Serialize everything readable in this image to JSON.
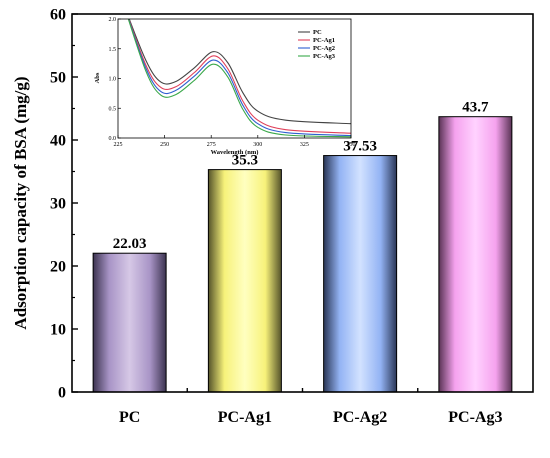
{
  "chart_data": [
    {
      "type": "bar",
      "categories": [
        "PC",
        "PC-Ag1",
        "PC-Ag2",
        "PC-Ag3"
      ],
      "values": [
        22.03,
        35.3,
        37.53,
        43.7
      ],
      "value_labels": [
        "22.03",
        "35.3",
        "37.53",
        "43.7"
      ],
      "ylabel": "Adsorption capacity of BSA (mg/g)",
      "xlabel": "",
      "ylim": [
        0,
        60
      ],
      "yticks": [
        0,
        10,
        20,
        30,
        40,
        50,
        60
      ],
      "bar_colors": [
        {
          "light": "#d6c8e6",
          "mid": "#a894c6",
          "dark": "#3c3350"
        },
        {
          "light": "#ffffc0",
          "mid": "#f7f27a",
          "dark": "#55532a"
        },
        {
          "light": "#d2e2ff",
          "mid": "#93b3f4",
          "dark": "#2a3656"
        },
        {
          "light": "#ffd2ff",
          "mid": "#f5a2ee",
          "dark": "#5a3355"
        }
      ],
      "grid": false
    },
    {
      "type": "line",
      "xlabel": "Wavelength (nm)",
      "ylabel": "Abs",
      "xlim": [
        225,
        350
      ],
      "ylim": [
        0,
        2.0
      ],
      "xticks": [
        225,
        250,
        275,
        300,
        325,
        350
      ],
      "yticks": [
        0.0,
        0.5,
        1.0,
        1.5,
        2.0
      ],
      "ytick_labels": [
        "0.0",
        "0.5",
        "1.0",
        "1.5",
        "2.0"
      ],
      "legend_position": "top-right",
      "series": [
        {
          "name": "PC",
          "color": "#444444",
          "anchors": [
            [
              228,
              2.25
            ],
            [
              240,
              1.3
            ],
            [
              248,
              0.94
            ],
            [
              256,
              0.95
            ],
            [
              266,
              1.18
            ],
            [
              276,
              1.45
            ],
            [
              284,
              1.26
            ],
            [
              292,
              0.76
            ],
            [
              300,
              0.45
            ],
            [
              315,
              0.3
            ],
            [
              350,
              0.24
            ]
          ]
        },
        {
          "name": "PC-Ag1",
          "color": "#e0405a",
          "anchors": [
            [
              228,
              2.25
            ],
            [
              240,
              1.22
            ],
            [
              248,
              0.85
            ],
            [
              256,
              0.86
            ],
            [
              266,
              1.1
            ],
            [
              276,
              1.38
            ],
            [
              284,
              1.16
            ],
            [
              292,
              0.62
            ],
            [
              300,
              0.3
            ],
            [
              315,
              0.14
            ],
            [
              350,
              0.08
            ]
          ]
        },
        {
          "name": "PC-Ag2",
          "color": "#2f5fd0",
          "anchors": [
            [
              228,
              2.25
            ],
            [
              240,
              1.17
            ],
            [
              248,
              0.78
            ],
            [
              256,
              0.8
            ],
            [
              266,
              1.04
            ],
            [
              276,
              1.31
            ],
            [
              284,
              1.09
            ],
            [
              292,
              0.55
            ],
            [
              300,
              0.24
            ],
            [
              315,
              0.09
            ],
            [
              350,
              0.04
            ]
          ]
        },
        {
          "name": "PC-Ag3",
          "color": "#3aa84a",
          "anchors": [
            [
              228,
              2.25
            ],
            [
              240,
              1.12
            ],
            [
              248,
              0.72
            ],
            [
              256,
              0.73
            ],
            [
              266,
              0.97
            ],
            [
              276,
              1.24
            ],
            [
              284,
              1.02
            ],
            [
              292,
              0.48
            ],
            [
              300,
              0.18
            ],
            [
              315,
              0.05
            ],
            [
              350,
              0.02
            ]
          ]
        }
      ]
    }
  ]
}
